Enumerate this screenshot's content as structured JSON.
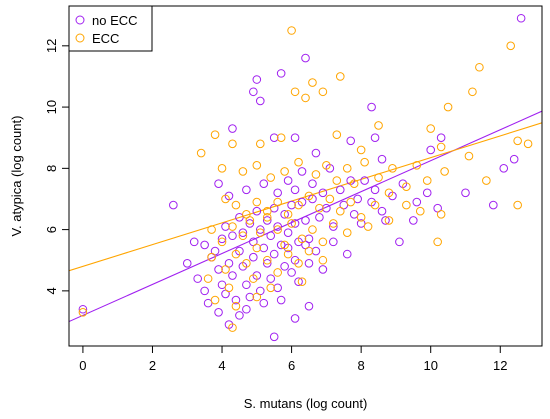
{
  "chart_data": {
    "type": "scatter",
    "xlabel": "S. mutans (log count)",
    "ylabel": "V. atypica (log count)",
    "xlim": [
      -0.4,
      13.2
    ],
    "ylim": [
      2.2,
      13.3
    ],
    "xticks": [
      0,
      2,
      4,
      6,
      8,
      10,
      12
    ],
    "yticks": [
      4,
      6,
      8,
      10,
      12
    ],
    "grid": false,
    "legend_position": "top-left",
    "series": [
      {
        "name": "no ECC",
        "color": "#a020f0",
        "fit_line": {
          "intercept": 3.2,
          "slope": 0.505
        },
        "points": [
          [
            12.6,
            12.9
          ],
          [
            6.4,
            11.6
          ],
          [
            5.7,
            11.1
          ],
          [
            5.0,
            10.9
          ],
          [
            4.9,
            10.5
          ],
          [
            5.1,
            10.2
          ],
          [
            4.3,
            9.3
          ],
          [
            5.5,
            9.0
          ],
          [
            6.1,
            9.0
          ],
          [
            6.7,
            8.5
          ],
          [
            8.3,
            10.0
          ],
          [
            7.7,
            8.9
          ],
          [
            8.4,
            9.0
          ],
          [
            8.6,
            8.3
          ],
          [
            10.0,
            8.6
          ],
          [
            10.3,
            9.0
          ],
          [
            12.1,
            8.0
          ],
          [
            12.4,
            8.3
          ],
          [
            3.9,
            7.5
          ],
          [
            4.2,
            7.1
          ],
          [
            4.7,
            7.3
          ],
          [
            5.2,
            7.5
          ],
          [
            5.6,
            7.2
          ],
          [
            5.9,
            7.6
          ],
          [
            6.1,
            7.3
          ],
          [
            6.3,
            7.9
          ],
          [
            6.6,
            7.5
          ],
          [
            6.9,
            7.2
          ],
          [
            7.1,
            8.0
          ],
          [
            7.4,
            7.3
          ],
          [
            7.7,
            7.6
          ],
          [
            7.9,
            7.0
          ],
          [
            8.1,
            7.6
          ],
          [
            8.4,
            7.3
          ],
          [
            8.6,
            6.6
          ],
          [
            8.9,
            7.1
          ],
          [
            9.2,
            7.5
          ],
          [
            9.6,
            6.9
          ],
          [
            9.9,
            7.2
          ],
          [
            10.2,
            6.7
          ],
          [
            11.0,
            7.2
          ],
          [
            11.8,
            6.8
          ],
          [
            2.6,
            6.8
          ],
          [
            3.2,
            5.6
          ],
          [
            3.5,
            5.5
          ],
          [
            3.8,
            5.3
          ],
          [
            4.0,
            5.7
          ],
          [
            4.1,
            6.1
          ],
          [
            4.3,
            5.8
          ],
          [
            4.5,
            6.4
          ],
          [
            4.6,
            5.9
          ],
          [
            4.8,
            6.2
          ],
          [
            4.9,
            5.6
          ],
          [
            5.0,
            6.6
          ],
          [
            5.1,
            6.0
          ],
          [
            5.2,
            5.4
          ],
          [
            5.3,
            6.3
          ],
          [
            5.4,
            5.8
          ],
          [
            5.5,
            6.7
          ],
          [
            5.6,
            6.1
          ],
          [
            5.7,
            5.5
          ],
          [
            5.8,
            6.5
          ],
          [
            5.9,
            5.9
          ],
          [
            6.0,
            6.8
          ],
          [
            6.1,
            6.2
          ],
          [
            6.2,
            5.6
          ],
          [
            6.3,
            6.9
          ],
          [
            6.4,
            6.3
          ],
          [
            6.5,
            5.7
          ],
          [
            6.6,
            7.0
          ],
          [
            6.8,
            6.4
          ],
          [
            7.0,
            6.7
          ],
          [
            7.2,
            6.1
          ],
          [
            7.5,
            6.8
          ],
          [
            7.8,
            6.5
          ],
          [
            8.0,
            6.2
          ],
          [
            8.3,
            6.9
          ],
          [
            8.7,
            6.3
          ],
          [
            9.1,
            5.6
          ],
          [
            9.5,
            6.3
          ],
          [
            3.0,
            4.9
          ],
          [
            3.3,
            4.4
          ],
          [
            3.5,
            4.0
          ],
          [
            3.6,
            3.6
          ],
          [
            3.7,
            5.1
          ],
          [
            3.9,
            4.7
          ],
          [
            4.0,
            4.2
          ],
          [
            4.1,
            3.9
          ],
          [
            4.2,
            4.9
          ],
          [
            4.3,
            4.5
          ],
          [
            4.4,
            3.7
          ],
          [
            4.5,
            5.3
          ],
          [
            4.6,
            4.8
          ],
          [
            4.7,
            4.2
          ],
          [
            4.8,
            3.8
          ],
          [
            4.9,
            5.1
          ],
          [
            5.0,
            4.5
          ],
          [
            5.1,
            4.0
          ],
          [
            5.2,
            3.6
          ],
          [
            5.3,
            4.9
          ],
          [
            5.4,
            4.4
          ],
          [
            5.5,
            5.2
          ],
          [
            5.6,
            4.1
          ],
          [
            5.7,
            3.7
          ],
          [
            5.8,
            4.8
          ],
          [
            5.9,
            5.4
          ],
          [
            6.0,
            4.6
          ],
          [
            6.1,
            5.0
          ],
          [
            6.2,
            4.3
          ],
          [
            6.4,
            5.5
          ],
          [
            6.5,
            4.9
          ],
          [
            6.7,
            5.3
          ],
          [
            6.9,
            4.7
          ],
          [
            7.2,
            5.6
          ],
          [
            7.6,
            5.2
          ],
          [
            3.9,
            3.3
          ],
          [
            4.2,
            2.9
          ],
          [
            4.5,
            3.2
          ],
          [
            4.7,
            3.4
          ],
          [
            5.5,
            2.5
          ],
          [
            6.1,
            3.1
          ],
          [
            6.5,
            3.5
          ],
          [
            0.0,
            3.4
          ]
        ]
      },
      {
        "name": "ECC",
        "color": "#ffa500",
        "fit_line": {
          "intercept": 4.8,
          "slope": 0.355
        },
        "points": [
          [
            6.0,
            12.5
          ],
          [
            12.3,
            12.0
          ],
          [
            11.4,
            11.3
          ],
          [
            11.2,
            10.5
          ],
          [
            7.4,
            11.0
          ],
          [
            6.1,
            10.5
          ],
          [
            6.4,
            10.3
          ],
          [
            6.9,
            10.5
          ],
          [
            6.6,
            10.8
          ],
          [
            10.5,
            10.0
          ],
          [
            8.5,
            9.4
          ],
          [
            3.8,
            9.1
          ],
          [
            4.3,
            8.8
          ],
          [
            5.1,
            8.8
          ],
          [
            5.7,
            9.0
          ],
          [
            7.3,
            9.1
          ],
          [
            8.0,
            8.6
          ],
          [
            9.6,
            8.1
          ],
          [
            10.0,
            9.3
          ],
          [
            10.3,
            8.7
          ],
          [
            11.1,
            8.4
          ],
          [
            12.5,
            8.9
          ],
          [
            12.8,
            8.8
          ],
          [
            3.4,
            8.5
          ],
          [
            4.0,
            8.0
          ],
          [
            4.6,
            7.9
          ],
          [
            5.0,
            8.1
          ],
          [
            5.4,
            7.7
          ],
          [
            5.8,
            7.9
          ],
          [
            6.2,
            8.2
          ],
          [
            6.7,
            7.8
          ],
          [
            7.0,
            8.1
          ],
          [
            7.3,
            7.6
          ],
          [
            7.6,
            8.0
          ],
          [
            7.8,
            7.5
          ],
          [
            8.1,
            8.2
          ],
          [
            8.5,
            7.7
          ],
          [
            8.9,
            8.0
          ],
          [
            9.3,
            7.4
          ],
          [
            9.9,
            7.6
          ],
          [
            10.4,
            7.9
          ],
          [
            11.6,
            7.6
          ],
          [
            4.1,
            7.0
          ],
          [
            4.4,
            6.8
          ],
          [
            4.7,
            6.5
          ],
          [
            5.0,
            6.9
          ],
          [
            5.3,
            6.6
          ],
          [
            5.6,
            6.9
          ],
          [
            5.9,
            6.5
          ],
          [
            6.2,
            6.8
          ],
          [
            6.5,
            7.1
          ],
          [
            6.8,
            6.7
          ],
          [
            7.1,
            7.0
          ],
          [
            7.4,
            6.6
          ],
          [
            7.7,
            6.9
          ],
          [
            8.0,
            6.4
          ],
          [
            8.4,
            6.8
          ],
          [
            8.8,
            7.2
          ],
          [
            9.3,
            6.8
          ],
          [
            9.7,
            6.6
          ],
          [
            10.3,
            6.5
          ],
          [
            12.5,
            6.8
          ],
          [
            3.7,
            6.0
          ],
          [
            4.0,
            5.6
          ],
          [
            4.3,
            6.1
          ],
          [
            4.6,
            5.8
          ],
          [
            4.8,
            6.3
          ],
          [
            5.1,
            5.9
          ],
          [
            5.3,
            6.4
          ],
          [
            5.6,
            6.0
          ],
          [
            5.8,
            5.5
          ],
          [
            6.0,
            6.2
          ],
          [
            6.3,
            5.7
          ],
          [
            6.6,
            6.0
          ],
          [
            6.9,
            5.6
          ],
          [
            7.2,
            6.2
          ],
          [
            7.6,
            5.9
          ],
          [
            8.2,
            6.1
          ],
          [
            8.8,
            6.3
          ],
          [
            10.2,
            5.6
          ],
          [
            3.7,
            5.1
          ],
          [
            4.1,
            4.7
          ],
          [
            4.4,
            5.2
          ],
          [
            4.7,
            4.9
          ],
          [
            5.0,
            5.4
          ],
          [
            5.3,
            5.0
          ],
          [
            5.6,
            4.6
          ],
          [
            5.9,
            5.2
          ],
          [
            6.2,
            4.9
          ],
          [
            6.5,
            5.3
          ],
          [
            6.9,
            5.0
          ],
          [
            3.6,
            4.4
          ],
          [
            4.2,
            4.1
          ],
          [
            4.9,
            4.4
          ],
          [
            5.4,
            4.1
          ],
          [
            6.3,
            4.3
          ],
          [
            3.8,
            3.7
          ],
          [
            4.4,
            3.5
          ],
          [
            5.0,
            3.8
          ],
          [
            4.3,
            2.8
          ],
          [
            0.0,
            3.3
          ]
        ]
      }
    ]
  }
}
